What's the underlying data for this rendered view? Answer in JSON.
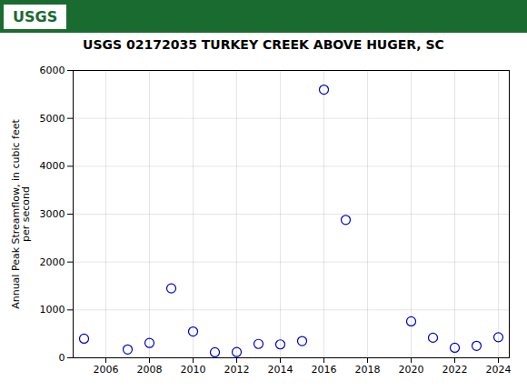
{
  "chart_data": {
    "type": "scatter",
    "title": "USGS 02172035 TURKEY CREEK ABOVE HUGER, SC",
    "ylabel": "Annual Peak Streamflow, in cubic feet\nper second",
    "x": [
      2005,
      2007,
      2008,
      2009,
      2010,
      2011,
      2012,
      2013,
      2014,
      2015,
      2016,
      2017,
      2020,
      2021,
      2022,
      2023,
      2024
    ],
    "values": [
      400,
      175,
      310,
      1450,
      550,
      115,
      120,
      290,
      280,
      350,
      5600,
      2880,
      760,
      420,
      210,
      250,
      430
    ],
    "color": "#0000cc",
    "marker": "circle",
    "xlim": [
      2004.5,
      2024.5
    ],
    "xticks": [
      2006,
      2008,
      2010,
      2012,
      2014,
      2016,
      2018,
      2020,
      2022,
      2024
    ],
    "ylim": [
      0,
      6000
    ],
    "yticks": [
      0,
      1000,
      2000,
      3000,
      4000,
      5000,
      6000
    ],
    "grid": true,
    "annotations": [
      "USGS"
    ]
  }
}
